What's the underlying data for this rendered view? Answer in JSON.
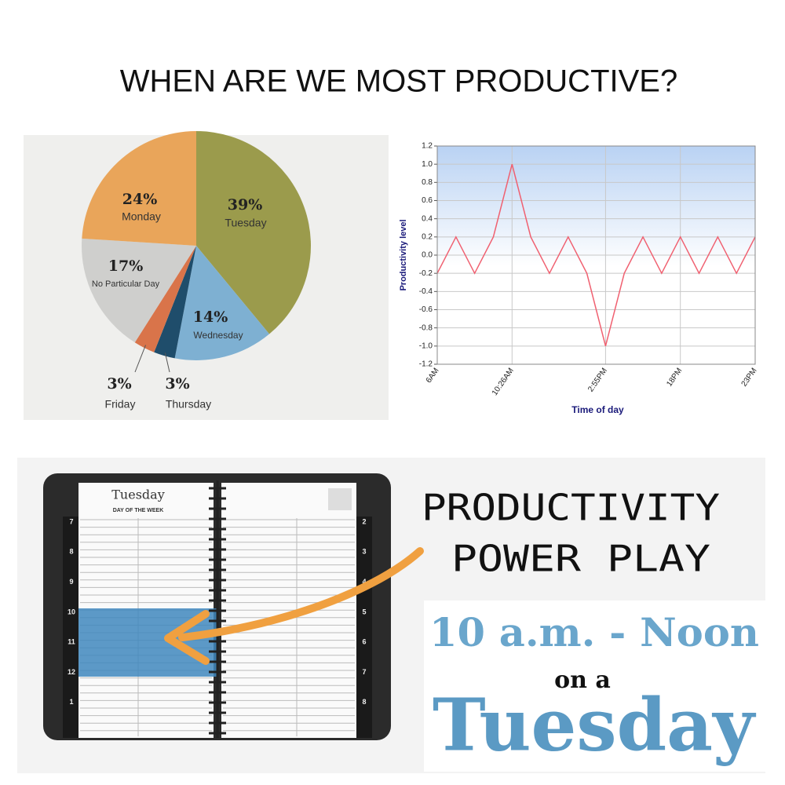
{
  "title": "WHEN ARE WE MOST PRODUCTIVE?",
  "chart_data": [
    {
      "type": "pie",
      "categories": [
        "Tuesday",
        "Wednesday",
        "Thursday",
        "Friday",
        "No Particular Day",
        "Monday"
      ],
      "values": [
        39,
        14,
        3,
        3,
        17,
        24
      ],
      "value_labels": [
        "39%",
        "14%",
        "3%",
        "3%",
        "17%",
        "24%"
      ],
      "colors": [
        "#9b9b4c",
        "#7eb0d2",
        "#1f4d6b",
        "#d9744a",
        "#cfcfcd",
        "#e9a55a"
      ]
    },
    {
      "type": "line",
      "x_label": "Time of day",
      "y_label": "Productivity level",
      "categories": [
        "6AM",
        null,
        null,
        null,
        "10:26AM",
        null,
        null,
        null,
        null,
        "2:55PM",
        null,
        null,
        null,
        "18PM",
        null,
        null,
        null,
        "23PM"
      ],
      "values": [
        -0.2,
        0.2,
        -0.2,
        0.2,
        1.0,
        0.2,
        -0.2,
        0.2,
        -0.2,
        -1.0,
        -0.2,
        0.2,
        -0.2,
        0.2,
        -0.2,
        0.2,
        -0.2,
        0.2
      ],
      "color": "#f06070",
      "ylim": [
        -1.2,
        1.2
      ],
      "yticks": [
        -1.2,
        {
          "value": -1,
          "label": "-1.0"
        },
        -0.8,
        -0.6,
        -0.4,
        -0.2,
        {
          "value": 0,
          "label": "0.0"
        },
        0.2,
        0.4,
        0.6,
        0.8,
        {
          "value": 1,
          "label": "1.0"
        },
        1.2
      ],
      "grid": true
    }
  ],
  "planner": {
    "day": "Tuesday",
    "subtitle": "DAY OF THE WEEK",
    "left_hours": [
      7,
      8,
      9,
      10,
      11,
      12,
      1
    ],
    "right_hours": [
      2,
      3,
      4,
      5,
      6,
      7,
      8
    ]
  },
  "headline": [
    "PRODUCTIVITY",
    "POWER PLAY"
  ],
  "callout": [
    "10 a.m. - Noon",
    "on a",
    "Tuesday"
  ]
}
